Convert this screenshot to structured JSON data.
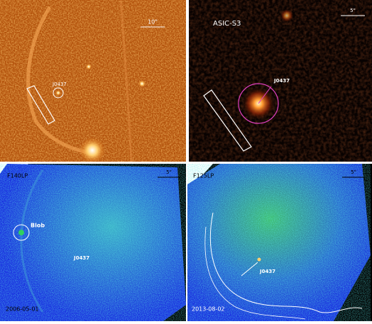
{
  "panels": [
    {
      "scale_bar": "10\"",
      "source_label": "J0437"
    },
    {
      "detector": "ASIC-S3",
      "scale_bar": "5\"",
      "source_label": "J0437"
    },
    {
      "filter": "F140LP",
      "scale_bar": "5\"",
      "blob_label": "Blob",
      "source_label": "J0437",
      "date": "2006-05-01"
    },
    {
      "filter": "F125LP",
      "scale_bar": "5\"",
      "source_label": "J0437",
      "date": "2013-08-02"
    }
  ]
}
